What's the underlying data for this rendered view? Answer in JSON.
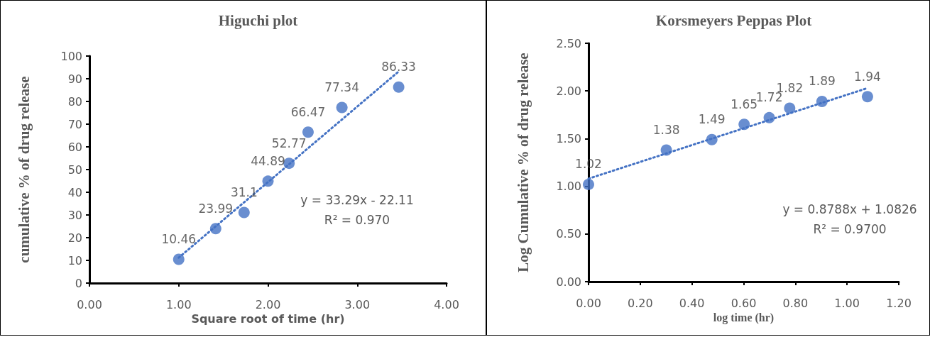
{
  "chart_data": [
    {
      "type": "scatter",
      "title": "Higuchi plot",
      "xlabel": "Square root of time (hr)",
      "ylabel": "cumulative % of drug release",
      "x": [
        1,
        1.414,
        1.732,
        2,
        2.236,
        2.449,
        2.828,
        3.464
      ],
      "series": [
        {
          "color": "#4472c4",
          "marker": "circle",
          "values": [
            10.46,
            23.99,
            31.1,
            44.89,
            52.77,
            66.47,
            77.34,
            86.33
          ],
          "value_labels": [
            "10.46",
            "23.99",
            "31.1",
            "44.89",
            "52.77",
            "66.47",
            "77.34",
            "86.33"
          ]
        },
        {
          "type": "line",
          "color": "#4472c4",
          "line_style": "dotted",
          "marker": "none",
          "x": [
            1,
            3.464
          ],
          "values": [
            11.2,
            93.2
          ]
        }
      ],
      "xlim": [
        0,
        4
      ],
      "xticks": [
        {
          "value": 0,
          "label": "0.00"
        },
        {
          "value": 1,
          "label": "1.00"
        },
        {
          "value": 2,
          "label": "2.00"
        },
        {
          "value": 3,
          "label": "3.00"
        },
        {
          "value": 4,
          "label": "4.00"
        }
      ],
      "ylim": [
        0,
        100
      ],
      "yticks": [
        0,
        10,
        20,
        30,
        40,
        50,
        60,
        70,
        80,
        90,
        100
      ],
      "annotations": [
        "y = 33.29x - 22.11",
        "R² = 0.970"
      ],
      "grid": false
    },
    {
      "type": "scatter",
      "title": "Korsmeyers Peppas Plot",
      "xlabel": "log time (hr)",
      "ylabel": "Log Cumulative % of drug release",
      "x": [
        0,
        0.301,
        0.477,
        0.602,
        0.699,
        0.778,
        0.903,
        1.079
      ],
      "series": [
        {
          "color": "#4472c4",
          "marker": "circle",
          "values": [
            1.02,
            1.38,
            1.49,
            1.65,
            1.72,
            1.82,
            1.89,
            1.94
          ],
          "value_labels": [
            "1.02",
            "1.38",
            "1.49",
            "1.65",
            "1.72",
            "1.82",
            "1.89",
            "1.94"
          ]
        },
        {
          "type": "line",
          "color": "#4472c4",
          "line_style": "dotted",
          "marker": "none",
          "x": [
            0,
            1.079
          ],
          "values": [
            1.08,
            2.03
          ]
        }
      ],
      "xlim": [
        0,
        1.2
      ],
      "xticks": [
        {
          "value": 0,
          "label": "0.00"
        },
        {
          "value": 0.2,
          "label": "0.20"
        },
        {
          "value": 0.4,
          "label": "0.40"
        },
        {
          "value": 0.6,
          "label": "0.60"
        },
        {
          "value": 0.8,
          "label": "0.80"
        },
        {
          "value": 1,
          "label": "1.00"
        },
        {
          "value": 1.2,
          "label": "1.20"
        }
      ],
      "ylim": [
        0,
        2.5
      ],
      "yticks": [
        {
          "value": 0,
          "label": "0.00"
        },
        {
          "value": 0.5,
          "label": "0.50"
        },
        {
          "value": 1,
          "label": "1.00"
        },
        {
          "value": 1.5,
          "label": "1.50"
        },
        {
          "value": 2,
          "label": "2.00"
        },
        {
          "value": 2.5,
          "label": "2.50"
        }
      ],
      "annotations": [
        "y = 0.8788x + 1.0826",
        "R² = 0.9700"
      ],
      "grid": false
    }
  ]
}
